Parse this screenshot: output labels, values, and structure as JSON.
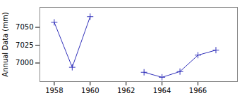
{
  "chart_data": {
    "type": "line",
    "x": [
      1958,
      1959,
      1960,
      1963,
      1964,
      1965,
      1966,
      1967
    ],
    "series": [
      {
        "color": "#3333bb",
        "values": [
          7057,
          6994,
          7065,
          null,
          null,
          null,
          null,
          null
        ]
      },
      {
        "color": "#3333bb",
        "values": [
          null,
          null,
          null,
          6987,
          6980,
          6988,
          7011,
          7018
        ]
      }
    ],
    "marker": "plus",
    "ylabel": "Annual Data (mm)",
    "xlim": [
      1957.2,
      1968.2
    ],
    "ylim": [
      6974,
      7078
    ],
    "xticks": [
      1958,
      1960,
      1962,
      1964,
      1966
    ],
    "yticks": [
      7000,
      7025,
      7050
    ],
    "grid": false
  }
}
